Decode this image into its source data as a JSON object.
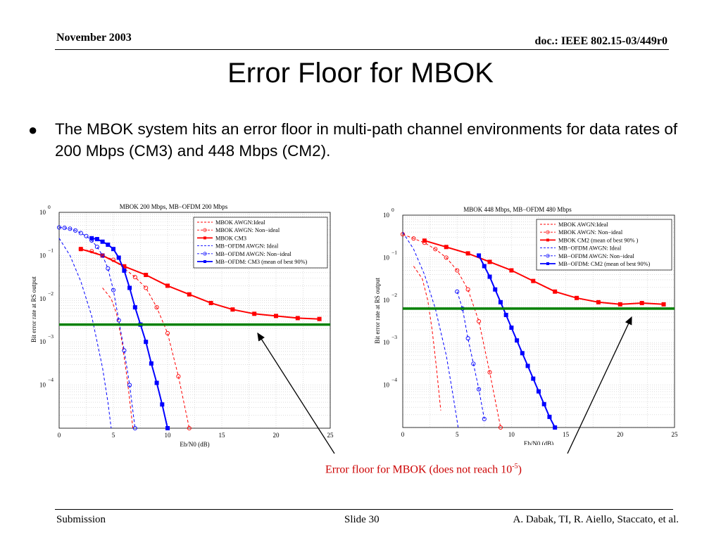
{
  "header": {
    "date": "November 2003",
    "doc": "doc.: IEEE 802.15-03/449r0"
  },
  "title": "Error Floor for MBOK",
  "bullet": "The MBOK system hits an error floor in multi-path channel environments for data rates of 200 Mbps (CM3) and 448 Mbps (CM2).",
  "callout": {
    "text": "Error floor for MBOK (does not reach 10",
    "sup": "-5",
    "close": ")"
  },
  "footer": {
    "left": "Submission",
    "middle": "Slide 30",
    "right": "A. Dabak, TI, R. Aiello, Staccato, et al."
  },
  "colors": {
    "red": "#ff0000",
    "blue": "#0000ff",
    "floor_line": "#008000"
  },
  "chart_data": [
    {
      "type": "line",
      "title": "MBOK 200 Mbps, MB−OFDM 200 Mbps",
      "xlabel": "Eb/N0 (dB)",
      "ylabel": "Bit error rate at RS output",
      "xlim": [
        0,
        25
      ],
      "ylim_log10": [
        -5,
        0
      ],
      "y_scale": "log",
      "xticks": [
        "0",
        "5",
        "10",
        "15",
        "20",
        "25"
      ],
      "yticks": [
        {
          "exp": 0,
          "base": "10",
          "sup": "0"
        },
        {
          "exp": -1,
          "base": "10",
          "sup": "−1"
        },
        {
          "exp": -2,
          "base": "10",
          "sup": "−2"
        },
        {
          "exp": -3,
          "base": "10",
          "sup": "−3"
        },
        {
          "exp": -4,
          "base": "10",
          "sup": "−4"
        }
      ],
      "grid": true,
      "legend_position": "top-right",
      "floor_line_log10": -2.6,
      "series": [
        {
          "name": "MBOK AWGN:Ideal",
          "color": "#ff0000",
          "dash": "dashed",
          "marker": "none",
          "x": [
            4.0,
            4.8,
            5.3,
            5.8,
            6.3,
            6.8
          ],
          "log10y": [
            -1.75,
            -2.0,
            -2.35,
            -3.0,
            -3.9,
            -5.0
          ]
        },
        {
          "name": "MBOK AWGN: Non−ideal",
          "color": "#ff0000",
          "dash": "dashed",
          "marker": "circle",
          "x": [
            2.0,
            3.0,
            4.0,
            5.0,
            6.0,
            7.0,
            8.0,
            9.0,
            10.0,
            11.0,
            12.0
          ],
          "log10y": [
            -0.85,
            -0.9,
            -1.0,
            -1.1,
            -1.3,
            -1.5,
            -1.75,
            -2.2,
            -2.8,
            -3.8,
            -5.0
          ]
        },
        {
          "name": "MBOK CM3",
          "color": "#ff0000",
          "dash": "solid",
          "marker": "square",
          "x": [
            2,
            4,
            6,
            8,
            10,
            12,
            14,
            16,
            18,
            20,
            22,
            24
          ],
          "log10y": [
            -0.85,
            -1.0,
            -1.25,
            -1.45,
            -1.7,
            -1.9,
            -2.1,
            -2.25,
            -2.35,
            -2.4,
            -2.45,
            -2.47
          ]
        },
        {
          "name": "MB−OFDM AWGN: Ideal",
          "color": "#0000ff",
          "dash": "dashed",
          "marker": "none",
          "x": [
            0.0,
            1.0,
            2.0,
            3.0,
            4.0,
            4.5,
            4.8
          ],
          "log10y": [
            -0.6,
            -1.0,
            -1.6,
            -2.4,
            -3.6,
            -4.4,
            -5.0
          ]
        },
        {
          "name": "MB−OFDM AWGN: Non−ideal",
          "color": "#0000ff",
          "dash": "dashed",
          "marker": "circle",
          "x": [
            0.0,
            0.5,
            1.0,
            1.5,
            2.0,
            2.5,
            3.0,
            3.5,
            4.0,
            4.5,
            5.0,
            5.5,
            6.0,
            6.5,
            7.0
          ],
          "log10y": [
            -0.35,
            -0.36,
            -0.38,
            -0.42,
            -0.48,
            -0.55,
            -0.65,
            -0.8,
            -1.0,
            -1.3,
            -1.8,
            -2.5,
            -3.2,
            -4.0,
            -5.0
          ]
        },
        {
          "name": "MB−OFDM: CM3 (mean of best 90%)",
          "color": "#0000ff",
          "dash": "solid",
          "marker": "square",
          "x": [
            3.0,
            3.5,
            4.0,
            4.5,
            5.0,
            5.5,
            6.0,
            6.5,
            7.0,
            7.5,
            8.0,
            8.5,
            9.0,
            9.5,
            10.0
          ],
          "log10y": [
            -0.6,
            -0.62,
            -0.68,
            -0.75,
            -0.85,
            -1.05,
            -1.35,
            -1.75,
            -2.2,
            -2.6,
            -3.0,
            -3.5,
            -3.95,
            -4.45,
            -5.0
          ]
        }
      ]
    },
    {
      "type": "line",
      "title": "MBOK 448 Mbps, MB−OFDM 480 Mbps",
      "xlabel": "Eb/N0 (dB)",
      "ylabel": "Bit error rate at RS output",
      "xlim": [
        0,
        25
      ],
      "ylim_log10": [
        -5,
        0
      ],
      "y_scale": "log",
      "xticks": [
        "0",
        "5",
        "10",
        "15",
        "20",
        "25"
      ],
      "yticks": [
        {
          "exp": 0,
          "base": "10",
          "sup": "0"
        },
        {
          "exp": -1,
          "base": "10",
          "sup": "−1"
        },
        {
          "exp": -2,
          "base": "10",
          "sup": "−2"
        },
        {
          "exp": -3,
          "base": "10",
          "sup": "−3"
        },
        {
          "exp": -4,
          "base": "10",
          "sup": "−4"
        }
      ],
      "grid": true,
      "legend_position": "top-right",
      "floor_line_log10": -2.2,
      "series": [
        {
          "name": "MBOK AWGN:Ideal",
          "color": "#ff0000",
          "dash": "dashed",
          "marker": "none",
          "x": [
            1.0,
            1.8,
            2.3,
            2.7,
            3.1,
            3.5
          ],
          "log10y": [
            -1.2,
            -1.5,
            -2.0,
            -2.7,
            -3.6,
            -4.6
          ]
        },
        {
          "name": "MBOK AWGN: Non−ideal",
          "color": "#ff0000",
          "dash": "dashed",
          "marker": "circle",
          "x": [
            0.0,
            1.0,
            2.0,
            3.0,
            4.0,
            5.0,
            6.0,
            7.0,
            8.0,
            9.0
          ],
          "log10y": [
            -0.45,
            -0.55,
            -0.65,
            -0.8,
            -1.0,
            -1.3,
            -1.75,
            -2.5,
            -3.7,
            -5.0
          ]
        },
        {
          "name": "MBOK CM2 (mean of best 90% )",
          "color": "#ff0000",
          "dash": "solid",
          "marker": "square",
          "x": [
            2,
            4,
            6,
            8,
            10,
            12,
            14,
            16,
            18,
            20,
            22,
            24
          ],
          "log10y": [
            -0.6,
            -0.75,
            -0.9,
            -1.1,
            -1.3,
            -1.55,
            -1.8,
            -1.95,
            -2.05,
            -2.1,
            -2.07,
            -2.1
          ]
        },
        {
          "name": "MB−OFDM AWGN: Ideal",
          "color": "#0000ff",
          "dash": "dashed",
          "marker": "none",
          "x": [
            0.0,
            1.0,
            2.0,
            3.0,
            4.0,
            4.6,
            5.1
          ],
          "log10y": [
            -0.4,
            -0.8,
            -1.4,
            -2.2,
            -3.3,
            -4.2,
            -5.0
          ]
        },
        {
          "name": "MB−OFDM AWGN: Non−ideal",
          "color": "#0000ff",
          "dash": "dashed",
          "marker": "circle",
          "x": [
            5.0,
            5.5,
            6.0,
            6.5,
            7.0,
            7.5
          ],
          "log10y": [
            -1.8,
            -2.2,
            -2.9,
            -3.5,
            -4.1,
            -4.8
          ]
        },
        {
          "name": "MB−OFDM: CM2 (mean of best 90%)",
          "color": "#0000ff",
          "dash": "solid",
          "marker": "square",
          "x": [
            7.0,
            7.5,
            8.0,
            8.5,
            9.0,
            9.5,
            10.0,
            10.5,
            11.0,
            11.5,
            12.0,
            12.5,
            13.0,
            13.5,
            14.0
          ],
          "log10y": [
            -0.95,
            -1.2,
            -1.45,
            -1.75,
            -2.05,
            -2.35,
            -2.65,
            -2.95,
            -3.25,
            -3.55,
            -3.85,
            -4.15,
            -4.45,
            -4.75,
            -5.0
          ]
        }
      ]
    }
  ]
}
